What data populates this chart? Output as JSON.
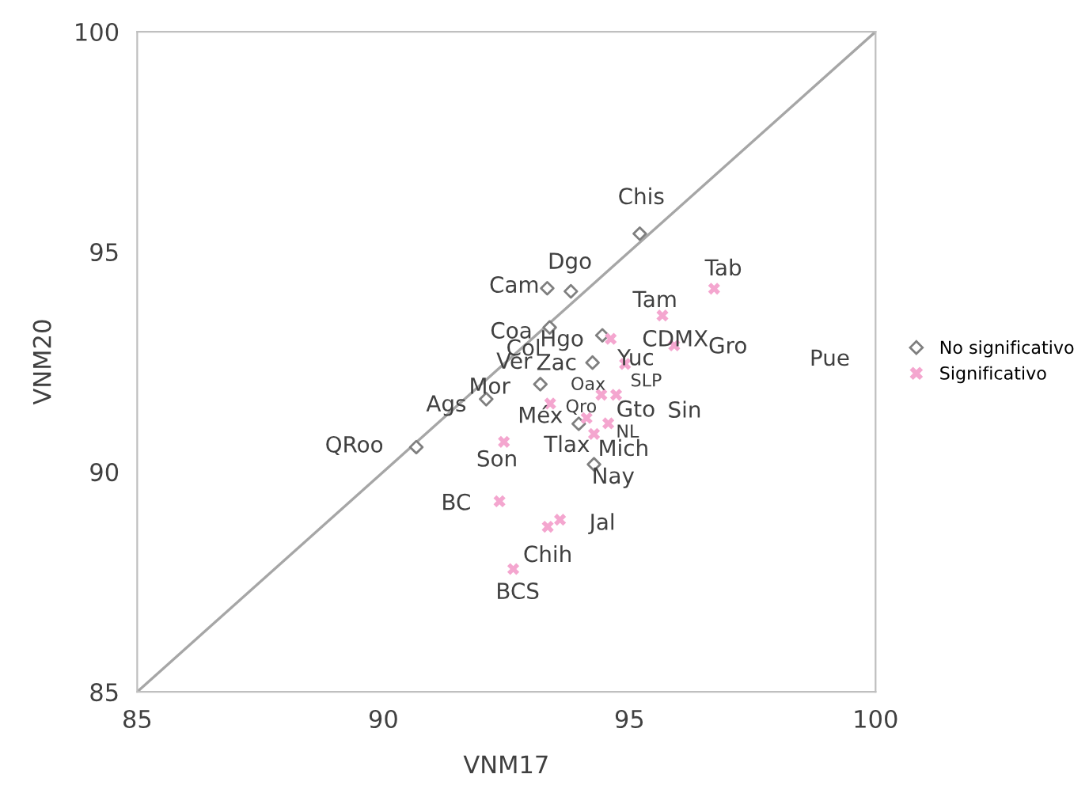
{
  "chart_data": {
    "type": "scatter",
    "xlabel": "VNM17",
    "ylabel": "VNM20",
    "xlim": [
      85,
      100
    ],
    "ylim": [
      85,
      100
    ],
    "xticks": [
      85,
      90,
      95,
      100
    ],
    "yticks": [
      85,
      90,
      95,
      100
    ],
    "grid": false,
    "legend": "right",
    "series": [
      {
        "name": "No significativo",
        "marker": "diamond",
        "color": "#7f7f7f",
        "x": [
          95.21,
          93.33,
          93.81,
          93.38,
          94.45,
          94.25,
          93.19,
          92.09,
          93.97,
          94.28,
          90.67
        ],
        "values": [
          95.41,
          94.17,
          94.1,
          93.28,
          93.1,
          92.48,
          91.99,
          91.65,
          91.09,
          90.17,
          90.56
        ]
      },
      {
        "name": "Significativo",
        "marker": "cross",
        "color": "#f4a6cf",
        "x": [
          96.72,
          95.67,
          95.91,
          94.62,
          94.91,
          94.43,
          94.73,
          93.39,
          94.13,
          94.57,
          94.28,
          92.45,
          92.36,
          93.59,
          93.34,
          92.64
        ],
        "values": [
          94.16,
          93.55,
          92.87,
          93.02,
          92.45,
          91.75,
          91.75,
          91.55,
          91.22,
          91.1,
          90.86,
          90.68,
          89.33,
          88.91,
          88.75,
          87.79
        ]
      },
      {
        "type": "line",
        "marker": "none",
        "color": "#a6a6a6",
        "x": [
          85,
          100
        ],
        "values": [
          85,
          100
        ]
      }
    ],
    "annotations": [
      {
        "text": "Chis",
        "x": 95.21,
        "y": 95.41
      },
      {
        "text": "Dgo",
        "x": 93.81,
        "y": 94.1
      },
      {
        "text": "Cam",
        "x": 93.33,
        "y": 94.17
      },
      {
        "text": "Tab",
        "x": 96.72,
        "y": 94.16
      },
      {
        "text": "Tam",
        "x": 95.67,
        "y": 93.55
      },
      {
        "text": "Coa",
        "x": 93.38,
        "y": 93.28
      },
      {
        "text": "Hgo",
        "x": 94.62,
        "y": 93.02
      },
      "Col",
      {
        "text": "CDMX",
        "x": 95.91,
        "y": 92.87
      },
      {
        "text": "Ver",
        "x": 93.19,
        "y": 91.99
      },
      {
        "text": "Zac",
        "x": 94.25,
        "y": 92.48
      },
      {
        "text": "Yuc",
        "x": 94.91,
        "y": 92.45
      },
      {
        "text": "Oax",
        "x": 94.43,
        "y": 91.75
      },
      {
        "text": "SLP",
        "x": 94.73,
        "y": 91.75
      },
      {
        "text": "Ags",
        "x": 92.09,
        "y": 91.65
      },
      {
        "text": "Méx",
        "x": 93.39,
        "y": 91.55
      },
      {
        "text": "Qro",
        "x": 94.13,
        "y": 91.22
      },
      {
        "text": "NL",
        "x": 94.57,
        "y": 91.1
      },
      {
        "text": "Tlax",
        "x": 94.28,
        "y": 90.86
      },
      {
        "text": "Mich",
        "x": 93.97,
        "y": 91.09
      },
      {
        "text": "Nay",
        "x": 94.28,
        "y": 90.17
      },
      {
        "text": "Son",
        "x": 92.45,
        "y": 90.68
      },
      {
        "text": "QRoo",
        "x": 90.67,
        "y": 90.56
      },
      {
        "text": "BC",
        "x": 92.36,
        "y": 89.33
      },
      {
        "text": "Jal",
        "x": 93.59,
        "y": 88.91
      },
      {
        "text": "Chih",
        "x": 93.34,
        "y": 88.75
      },
      {
        "text": "BCS",
        "x": 92.64,
        "y": 87.79
      },
      "Gro",
      "Pue",
      "Mor",
      "Gto",
      "Sin"
    ]
  }
}
